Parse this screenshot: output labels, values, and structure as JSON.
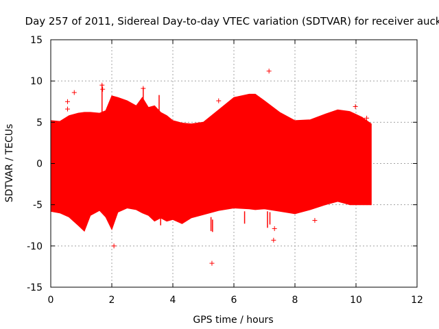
{
  "chart_data": {
    "type": "scatter",
    "title": "Day 257 of 2011, Sidereal Day-to-day VTEC variation (SDTVAR) for receiver auck",
    "xlabel": "GPS time / hours",
    "ylabel": "SDTVAR / TECUs",
    "xlim": [
      0,
      12
    ],
    "ylim": [
      -15,
      15
    ],
    "xticks": [
      0,
      2,
      4,
      6,
      8,
      10,
      12
    ],
    "yticks": [
      -15,
      -10,
      -5,
      0,
      5,
      10,
      15
    ],
    "grid": true,
    "series_color": "#ff0000",
    "marker": "plus",
    "envelope": {
      "description_of_series": "dense band of SDTVAR samples",
      "x_hours": [
        0.0,
        0.3,
        0.6,
        0.9,
        1.1,
        1.3,
        1.6,
        1.8,
        2.0,
        2.2,
        2.5,
        2.8,
        3.0,
        3.2,
        3.4,
        3.6,
        3.8,
        4.0,
        4.3,
        4.6,
        5.0,
        5.5,
        6.0,
        6.5,
        6.7,
        7.0,
        7.5,
        8.0,
        8.5,
        9.0,
        9.4,
        9.8,
        10.2,
        10.5
      ],
      "upper": [
        5.2,
        5.1,
        5.8,
        6.1,
        6.2,
        6.2,
        6.1,
        6.4,
        8.2,
        8.0,
        7.6,
        7.0,
        8.0,
        6.8,
        7.0,
        6.2,
        5.8,
        5.2,
        4.9,
        4.8,
        5.0,
        6.5,
        8.0,
        8.4,
        8.4,
        7.6,
        6.2,
        5.2,
        5.3,
        6.0,
        6.5,
        6.3,
        5.6,
        4.8
      ],
      "lower": [
        -5.8,
        -6.0,
        -6.5,
        -7.5,
        -8.2,
        -6.3,
        -5.7,
        -6.5,
        -8.0,
        -5.9,
        -5.4,
        -5.6,
        -6.0,
        -6.3,
        -7.0,
        -6.6,
        -7.0,
        -6.8,
        -7.3,
        -6.6,
        -6.2,
        -5.7,
        -5.4,
        -5.5,
        -5.6,
        -5.5,
        -5.8,
        -6.1,
        -5.6,
        -5.0,
        -4.6,
        -5.0,
        -5.0,
        -5.0
      ]
    },
    "outliers": [
      {
        "x": 0.77,
        "y": 8.6
      },
      {
        "x": 0.55,
        "y": 7.5
      },
      {
        "x": 0.55,
        "y": 6.6
      },
      {
        "x": 1.68,
        "y": 9.5
      },
      {
        "x": 1.7,
        "y": 9.0
      },
      {
        "x": 2.07,
        "y": -10.0
      },
      {
        "x": 3.03,
        "y": 9.1
      },
      {
        "x": 5.28,
        "y": -12.1
      },
      {
        "x": 5.5,
        "y": 7.6
      },
      {
        "x": 7.15,
        "y": 11.2
      },
      {
        "x": 7.3,
        "y": -9.3
      },
      {
        "x": 7.33,
        "y": -7.9
      },
      {
        "x": 8.65,
        "y": -6.9
      },
      {
        "x": 9.98,
        "y": 6.9
      },
      {
        "x": 10.35,
        "y": 5.5
      }
    ],
    "spikes": [
      {
        "x": 1.68,
        "low": 6.0,
        "high": 9.6
      },
      {
        "x": 3.03,
        "low": 6.5,
        "high": 9.2
      },
      {
        "x": 3.55,
        "low": 5.5,
        "high": 8.3
      },
      {
        "x": 3.6,
        "low": -7.5,
        "high": -6.0
      },
      {
        "x": 5.25,
        "low": -8.2,
        "high": -6.5
      },
      {
        "x": 5.3,
        "low": -8.3,
        "high": -6.8
      },
      {
        "x": 6.35,
        "low": -7.3,
        "high": -5.8
      },
      {
        "x": 7.1,
        "low": -7.8,
        "high": -5.8
      },
      {
        "x": 7.18,
        "low": -7.4,
        "high": -5.9
      }
    ]
  }
}
